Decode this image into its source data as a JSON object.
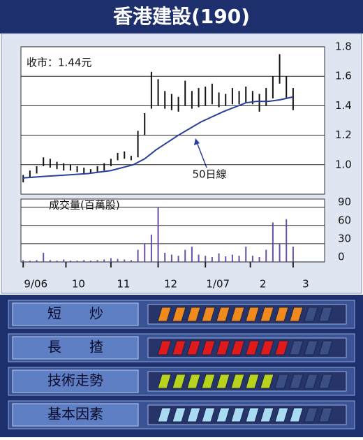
{
  "title": "香港建設(190)",
  "chart_data": [
    {
      "type": "hilo",
      "annotation": "收市：1.44元",
      "x": [
        1,
        4,
        7,
        10,
        13,
        16,
        19,
        22,
        25,
        28,
        31,
        34,
        37,
        40,
        43,
        46,
        49,
        52,
        55,
        58,
        61,
        64,
        67,
        70,
        73,
        76,
        79,
        82,
        85,
        88,
        91,
        94,
        97,
        100,
        103,
        106,
        109,
        112,
        115,
        118,
        121
      ],
      "high": [
        0.93,
        0.96,
        0.99,
        1.05,
        1.04,
        1.02,
        1.01,
        1.0,
        0.99,
        0.98,
        0.97,
        0.99,
        1.01,
        1.04,
        1.08,
        1.09,
        1.06,
        1.23,
        1.35,
        1.63,
        1.58,
        1.5,
        1.48,
        1.46,
        1.57,
        1.5,
        1.52,
        1.53,
        1.55,
        1.49,
        1.48,
        1.52,
        1.5,
        1.53,
        1.5,
        1.48,
        1.52,
        1.6,
        1.75,
        1.6,
        1.52
      ],
      "low": [
        0.88,
        0.91,
        0.94,
        0.99,
        0.98,
        0.97,
        0.96,
        0.96,
        0.95,
        0.94,
        0.94,
        0.95,
        0.96,
        0.99,
        1.03,
        1.04,
        1.03,
        1.05,
        1.2,
        1.38,
        1.4,
        1.38,
        1.37,
        1.36,
        1.4,
        1.38,
        1.39,
        1.4,
        1.41,
        1.39,
        1.4,
        1.41,
        1.41,
        1.42,
        1.41,
        1.36,
        1.4,
        1.45,
        1.55,
        1.45,
        1.37
      ],
      "color": "#111111",
      "ma": {
        "label": "50日線",
        "color": "#2a3f9a",
        "x": [
          1,
          10,
          20,
          30,
          40,
          50,
          55,
          60,
          70,
          80,
          90,
          100,
          105,
          110,
          115,
          121
        ],
        "values": [
          0.91,
          0.92,
          0.93,
          0.94,
          0.96,
          1.0,
          1.04,
          1.1,
          1.2,
          1.29,
          1.36,
          1.42,
          1.43,
          1.43,
          1.44,
          1.46
        ]
      },
      "xlim": [
        0,
        135
      ],
      "ylim": [
        0.8,
        1.8
      ],
      "yticks": [
        {
          "value": 1.0,
          "label": "1.0"
        },
        1.2,
        1.4,
        1.6,
        1.8
      ],
      "grid": true
    },
    {
      "type": "bar",
      "ylabel": "成交量(百萬股)",
      "x": [
        1,
        4,
        7,
        10,
        13,
        16,
        19,
        22,
        25,
        28,
        31,
        34,
        37,
        40,
        43,
        46,
        49,
        52,
        55,
        58,
        61,
        64,
        67,
        70,
        73,
        76,
        79,
        82,
        85,
        88,
        91,
        94,
        97,
        100,
        103,
        106,
        109,
        112,
        115,
        118,
        121
      ],
      "values": [
        3,
        2,
        3,
        15,
        3,
        2,
        4,
        2,
        2,
        3,
        2,
        3,
        4,
        6,
        5,
        4,
        3,
        20,
        30,
        45,
        90,
        15,
        12,
        10,
        20,
        25,
        12,
        10,
        8,
        14,
        9,
        12,
        10,
        25,
        10,
        8,
        20,
        65,
        30,
        70,
        25
      ],
      "color": "#6a4fa8",
      "xlim": [
        0,
        135
      ],
      "ylim": [
        0,
        100
      ],
      "yticks": [
        0,
        30,
        60,
        90
      ],
      "xticks": [
        {
          "value": 1,
          "label": "9/06"
        },
        {
          "value": 20,
          "label": "10"
        },
        {
          "value": 40,
          "label": "11"
        },
        {
          "value": 61,
          "label": "12"
        },
        {
          "value": 82,
          "label": "1/07"
        },
        {
          "value": 102,
          "label": "2"
        },
        {
          "value": 121,
          "label": "3"
        }
      ],
      "grid": true
    }
  ],
  "ratings": {
    "max_score": 12,
    "items": [
      {
        "label": "短　　炒",
        "score": 10,
        "color": "#f08a1c"
      },
      {
        "label": "長　　揸",
        "score": 9,
        "color": "#e01a1a"
      },
      {
        "label": "技術走勢",
        "score": 8,
        "color": "#b8d21e"
      },
      {
        "label": "基本因素",
        "score": 10,
        "color": "#a9dcf2"
      }
    ]
  }
}
